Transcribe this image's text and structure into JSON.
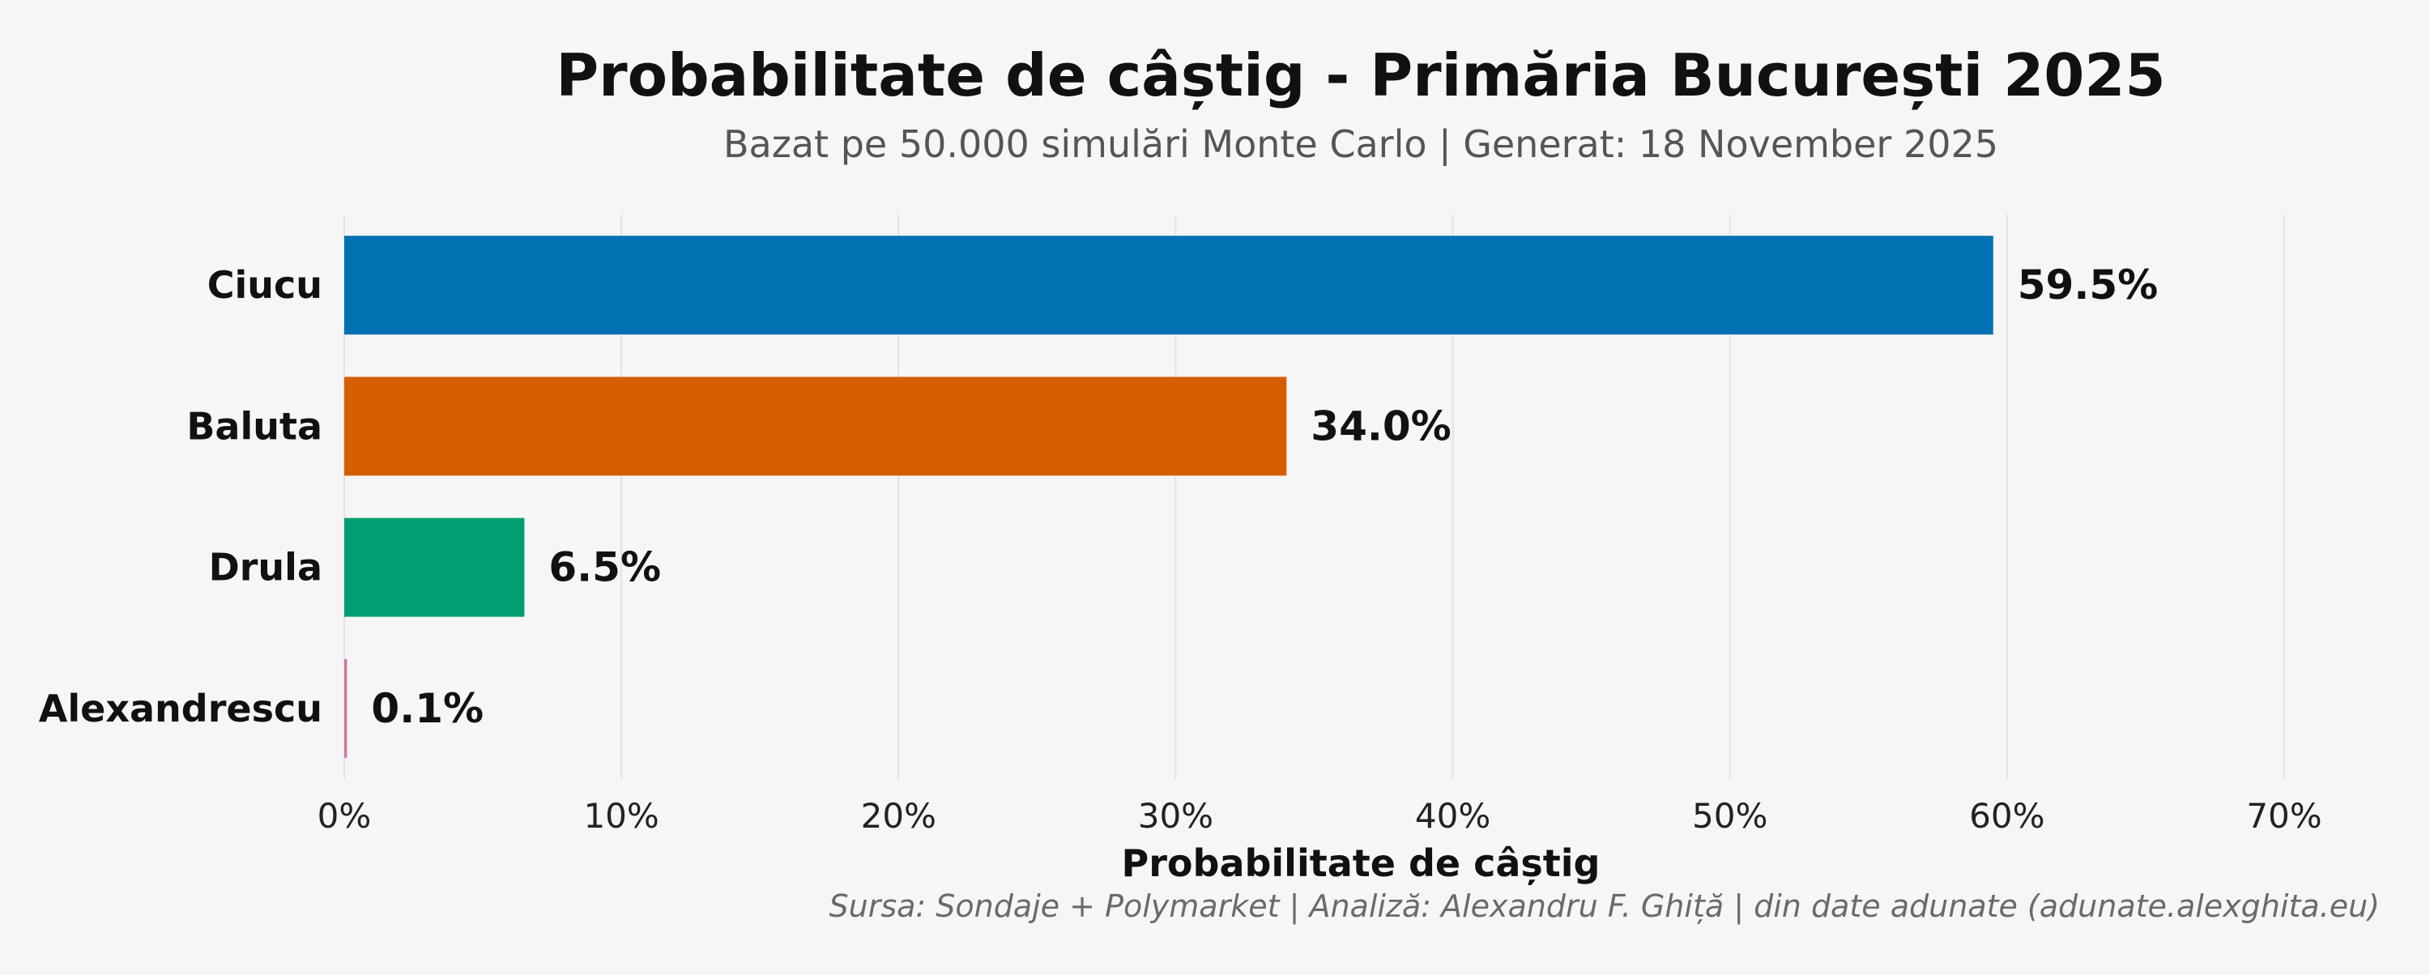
{
  "chart_data": {
    "type": "bar",
    "orientation": "horizontal",
    "title": "Probabilitate de câștig - Primăria București 2025",
    "subtitle": "Bazat pe 50.000 simulări Monte Carlo | Generat: 18 November 2025",
    "xlabel": "Probabilitate de câștig",
    "ylabel": "",
    "caption": "Sursa: Sondaje + Polymarket | Analiză: Alexandru F. Ghiță | din date adunate (adunate.alexghita.eu)",
    "categories": [
      "Ciucu",
      "Baluta",
      "Drula",
      "Alexandrescu"
    ],
    "values": [
      59.5,
      34.0,
      6.5,
      0.1
    ],
    "value_labels": [
      "59.5%",
      "34.0%",
      "6.5%",
      "0.1%"
    ],
    "colors": [
      "#0072b2",
      "#d55e00",
      "#009e73",
      "#cc79a7"
    ],
    "xlim": [
      0,
      70
    ],
    "xticks": [
      0,
      10,
      20,
      30,
      40,
      50,
      60,
      70
    ],
    "xtick_labels": [
      "0%",
      "10%",
      "20%",
      "30%",
      "40%",
      "50%",
      "60%",
      "70%"
    ],
    "grid": true,
    "legend": "none"
  }
}
